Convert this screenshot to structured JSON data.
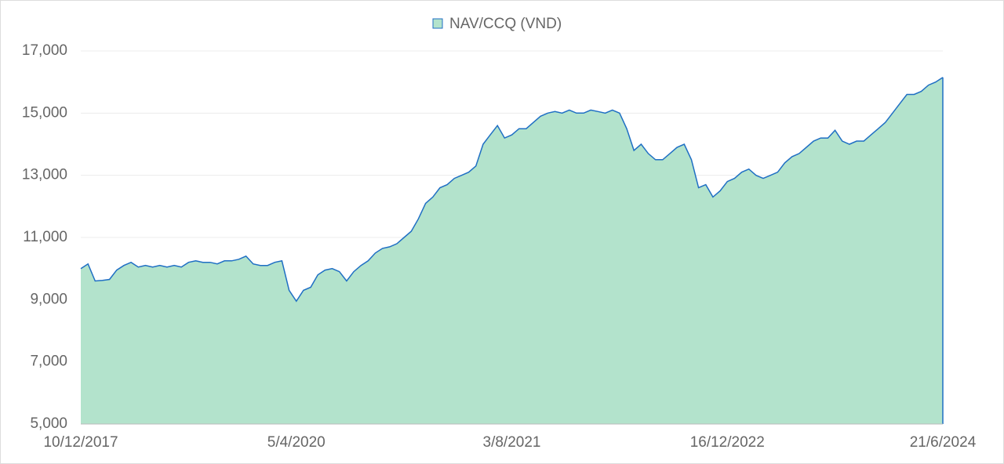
{
  "chart_data": {
    "type": "area",
    "categories": [
      "10/12/2017",
      null,
      null,
      null,
      null,
      null,
      null,
      null,
      null,
      null,
      null,
      null,
      null,
      null,
      null,
      null,
      null,
      null,
      null,
      null,
      null,
      null,
      null,
      null,
      null,
      null,
      null,
      null,
      null,
      null,
      "5/4/2020",
      null,
      null,
      null,
      null,
      null,
      null,
      null,
      null,
      null,
      null,
      null,
      null,
      null,
      null,
      null,
      null,
      null,
      null,
      null,
      null,
      null,
      null,
      null,
      null,
      null,
      null,
      null,
      null,
      null,
      "3/8/2021",
      null,
      null,
      null,
      null,
      null,
      null,
      null,
      null,
      null,
      null,
      null,
      null,
      null,
      null,
      null,
      null,
      null,
      null,
      null,
      null,
      null,
      null,
      null,
      null,
      null,
      null,
      null,
      null,
      null,
      "16/12/2022",
      null,
      null,
      null,
      null,
      null,
      null,
      null,
      null,
      null,
      null,
      null,
      null,
      null,
      null,
      null,
      null,
      null,
      null,
      null,
      null,
      null,
      null,
      null,
      null,
      null,
      null,
      null,
      null,
      null,
      "21/6/2024"
    ],
    "series": [
      {
        "name": "NAV/CCQ (VND)",
        "color": "#1f6fc4",
        "fill": "#b3e3cc",
        "values": [
          10000,
          10150,
          9600,
          9620,
          9650,
          9950,
          10100,
          10200,
          10050,
          10100,
          10050,
          10100,
          10050,
          10100,
          10050,
          10200,
          10250,
          10200,
          10200,
          10150,
          10250,
          10250,
          10300,
          10400,
          10150,
          10100,
          10100,
          10200,
          10250,
          9300,
          8950,
          9300,
          9400,
          9800,
          9950,
          10000,
          9900,
          9600,
          9900,
          10100,
          10250,
          10500,
          10650,
          10700,
          10800,
          11000,
          11200,
          11600,
          12100,
          12300,
          12600,
          12700,
          12900,
          13000,
          13100,
          13300,
          14000,
          14300,
          14600,
          14200,
          14300,
          14500,
          14500,
          14700,
          14900,
          15000,
          15050,
          15000,
          15100,
          15000,
          15000,
          15100,
          15050,
          15000,
          15100,
          15000,
          14500,
          13800,
          14000,
          13700,
          13500,
          13500,
          13700,
          13900,
          14000,
          13500,
          12600,
          12700,
          12300,
          12500,
          12800,
          12900,
          13100,
          13200,
          13000,
          12900,
          13000,
          13100,
          13400,
          13600,
          13700,
          13900,
          14100,
          14200,
          14200,
          14450,
          14100,
          14000,
          14100,
          14100,
          14300,
          14500,
          14700,
          15000,
          15300,
          15600,
          15600,
          15700,
          15900,
          16000,
          16150
        ]
      }
    ],
    "ylim": [
      5000,
      17000
    ],
    "yticks": [
      {
        "value": 5000,
        "label": "5,000"
      },
      {
        "value": 7000,
        "label": "7,000"
      },
      {
        "value": 9000,
        "label": "9,000"
      },
      {
        "value": 11000,
        "label": "11,000"
      },
      {
        "value": 13000,
        "label": "13,000"
      },
      {
        "value": 15000,
        "label": "15,000"
      },
      {
        "value": 17000,
        "label": "17,000"
      }
    ],
    "grid": true,
    "legend": "top"
  }
}
